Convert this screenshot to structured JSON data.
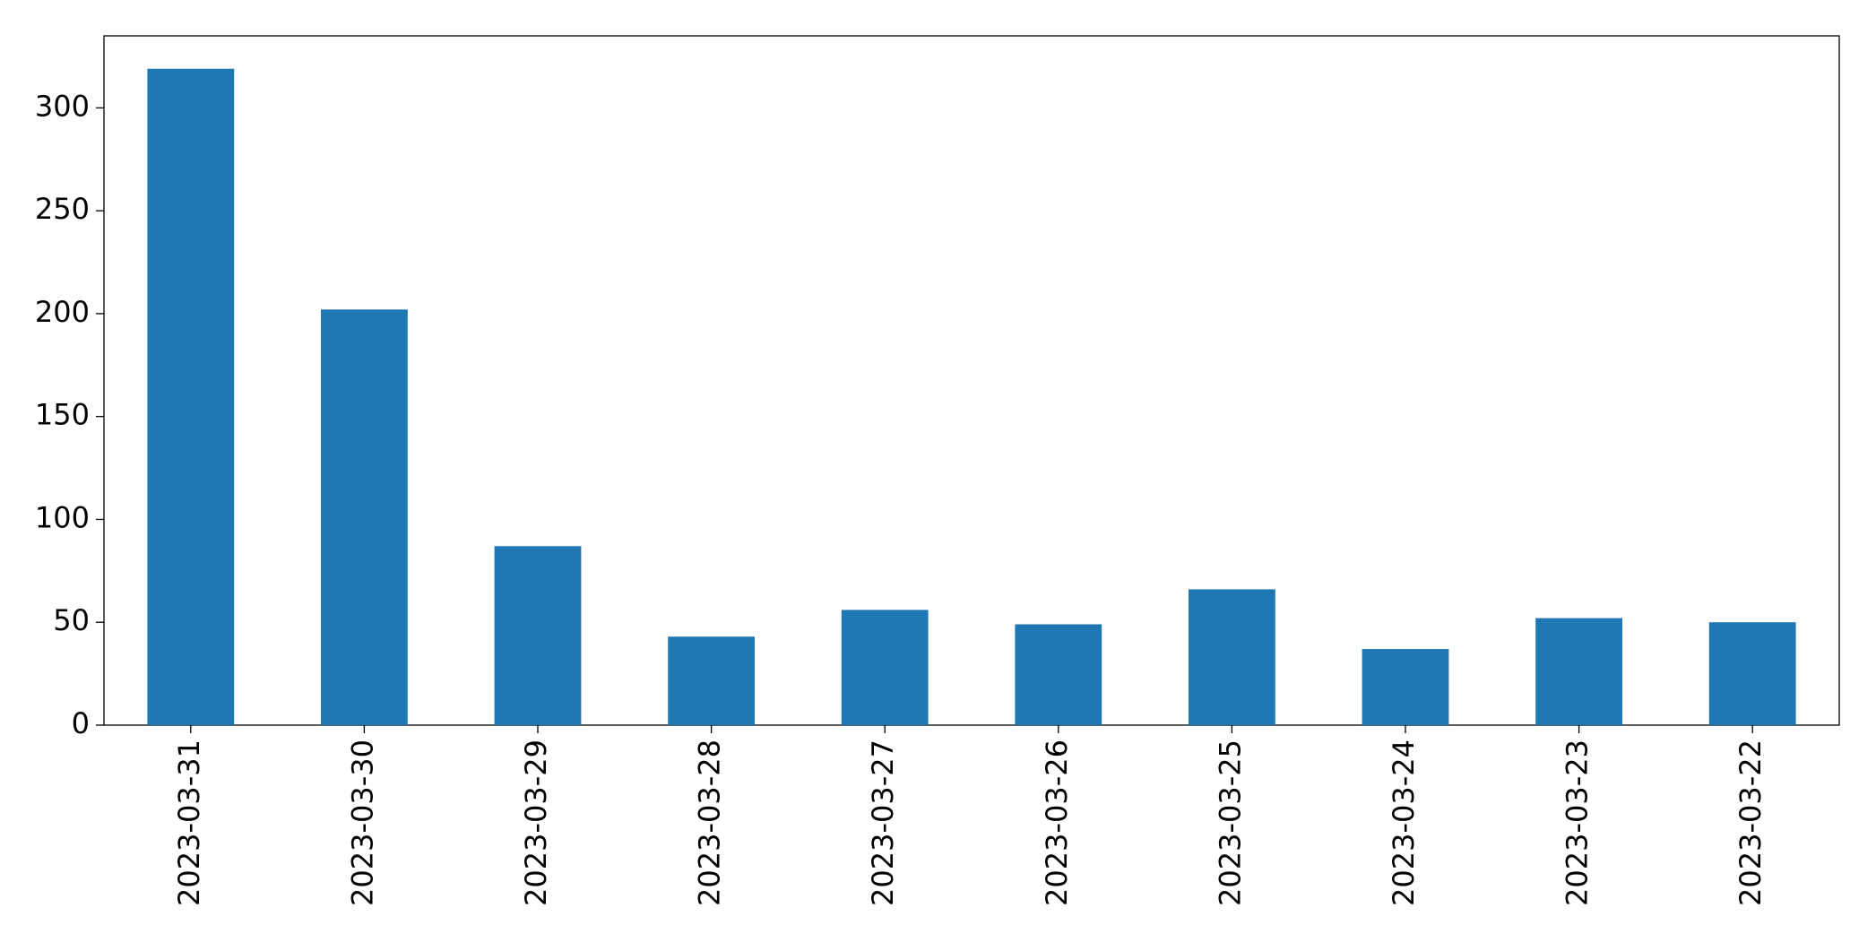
{
  "chart_data": {
    "type": "bar",
    "categories": [
      "2023-03-31",
      "2023-03-30",
      "2023-03-29",
      "2023-03-28",
      "2023-03-27",
      "2023-03-26",
      "2023-03-25",
      "2023-03-24",
      "2023-03-23",
      "2023-03-22"
    ],
    "values": [
      319,
      202,
      87,
      43,
      56,
      49,
      66,
      37,
      52,
      50
    ],
    "color": "#1f77b4",
    "ylim": [
      0,
      335
    ],
    "yticks": [
      0,
      50,
      100,
      150,
      200,
      250,
      300
    ],
    "grid": false
  }
}
